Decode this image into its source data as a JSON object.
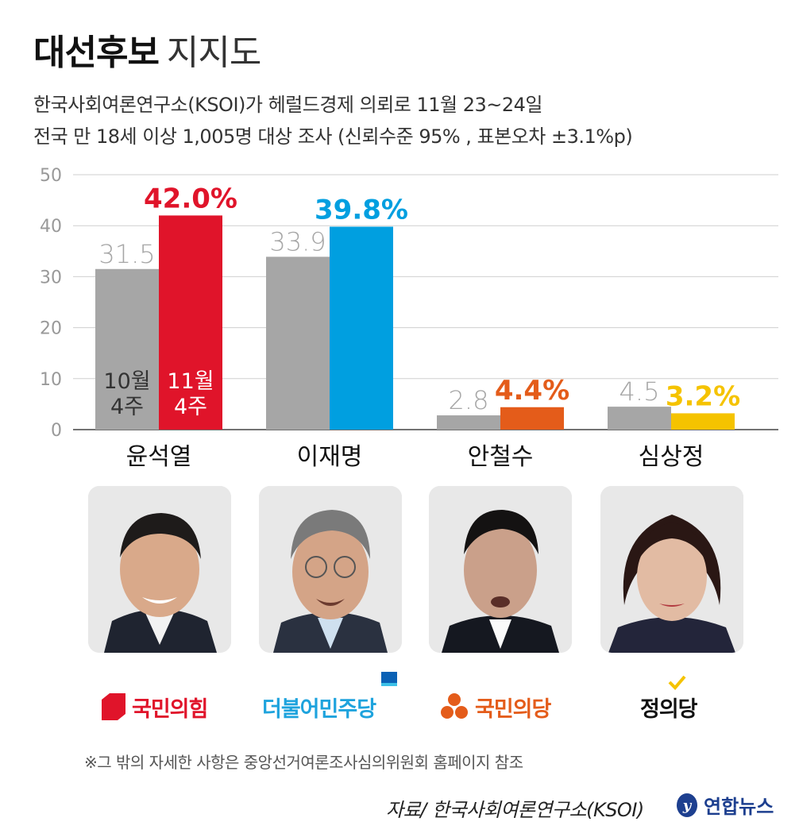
{
  "header": {
    "title_bold": "대선후보",
    "title_light": "지지도",
    "subtitle_1": "한국사회여론연구소(KSOI)가 헤럴드경제 의뢰로 11월 23~24일",
    "subtitle_2": "전국 만 18세 이상  1,005명 대상 조사 (신뢰수준 95% , 표본오차 ±3.1%p)"
  },
  "chart_data": {
    "type": "bar",
    "categories": [
      "윤석열",
      "이재명",
      "안철수",
      "심상정"
    ],
    "series": [
      {
        "name": "10월 4주",
        "values": [
          31.5,
          33.9,
          2.8,
          4.5
        ],
        "labels": [
          "31.5",
          "33.9",
          "2.8",
          "4.5"
        ],
        "color": "#a6a6a6"
      },
      {
        "name": "11월 4주",
        "values": [
          42.0,
          39.8,
          4.4,
          3.2
        ],
        "labels": [
          "42.0%",
          "39.8%",
          "4.4%",
          "3.2%"
        ],
        "colors": [
          "#e0142a",
          "#009fe0",
          "#e45c1a",
          "#f5c300"
        ]
      }
    ],
    "ylim": [
      0,
      50
    ],
    "yticks": [
      "0",
      "10",
      "20",
      "30",
      "40",
      "50"
    ],
    "grid": true,
    "legend_labels": [
      [
        "10월",
        "4주"
      ],
      [
        "11월",
        "4주"
      ]
    ]
  },
  "parties": [
    "국민의힘",
    "더불어민주당",
    "국민의당",
    "정의당"
  ],
  "party_colors": [
    "#e0142a",
    "#1ea3dd",
    "#e45c1a",
    "#111111"
  ],
  "note": "※그 밖의 자세한 사항은 중앙선거여론조사심의위원회 홈페이지 참조",
  "source": "자료/ 한국사회여론연구소(KSOI)",
  "agency": "연합뉴스",
  "icons": [
    "person-photo-icon",
    "party-logo-icon",
    "yonhap-logo-icon"
  ]
}
